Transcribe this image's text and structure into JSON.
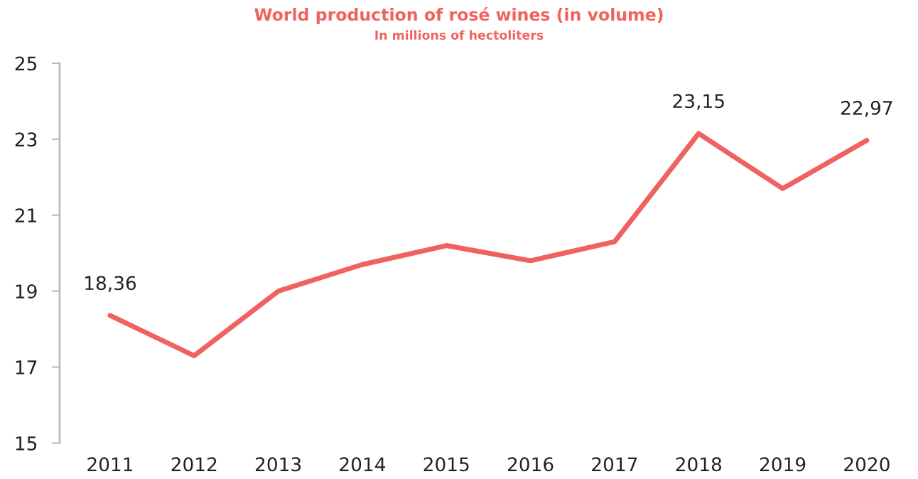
{
  "chart_data": {
    "type": "line",
    "title": "World production of rosé wines (in volume)",
    "subtitle": "In millions of hectoliters",
    "categories": [
      "2011",
      "2012",
      "2013",
      "2014",
      "2015",
      "2016",
      "2017",
      "2018",
      "2019",
      "2020"
    ],
    "series": [
      {
        "color": "#f0625f",
        "values": [
          18.36,
          17.3,
          19.0,
          19.7,
          20.2,
          19.8,
          20.3,
          23.15,
          21.7,
          22.97
        ],
        "value_labels": [
          "18,36",
          null,
          null,
          null,
          null,
          null,
          null,
          "23,15",
          null,
          "22,97"
        ]
      }
    ],
    "ylim": [
      15,
      25
    ],
    "yticks": [
      15,
      17,
      19,
      21,
      23,
      25
    ],
    "grid": false,
    "legend": false,
    "marker": "none",
    "line_style": "solid"
  }
}
